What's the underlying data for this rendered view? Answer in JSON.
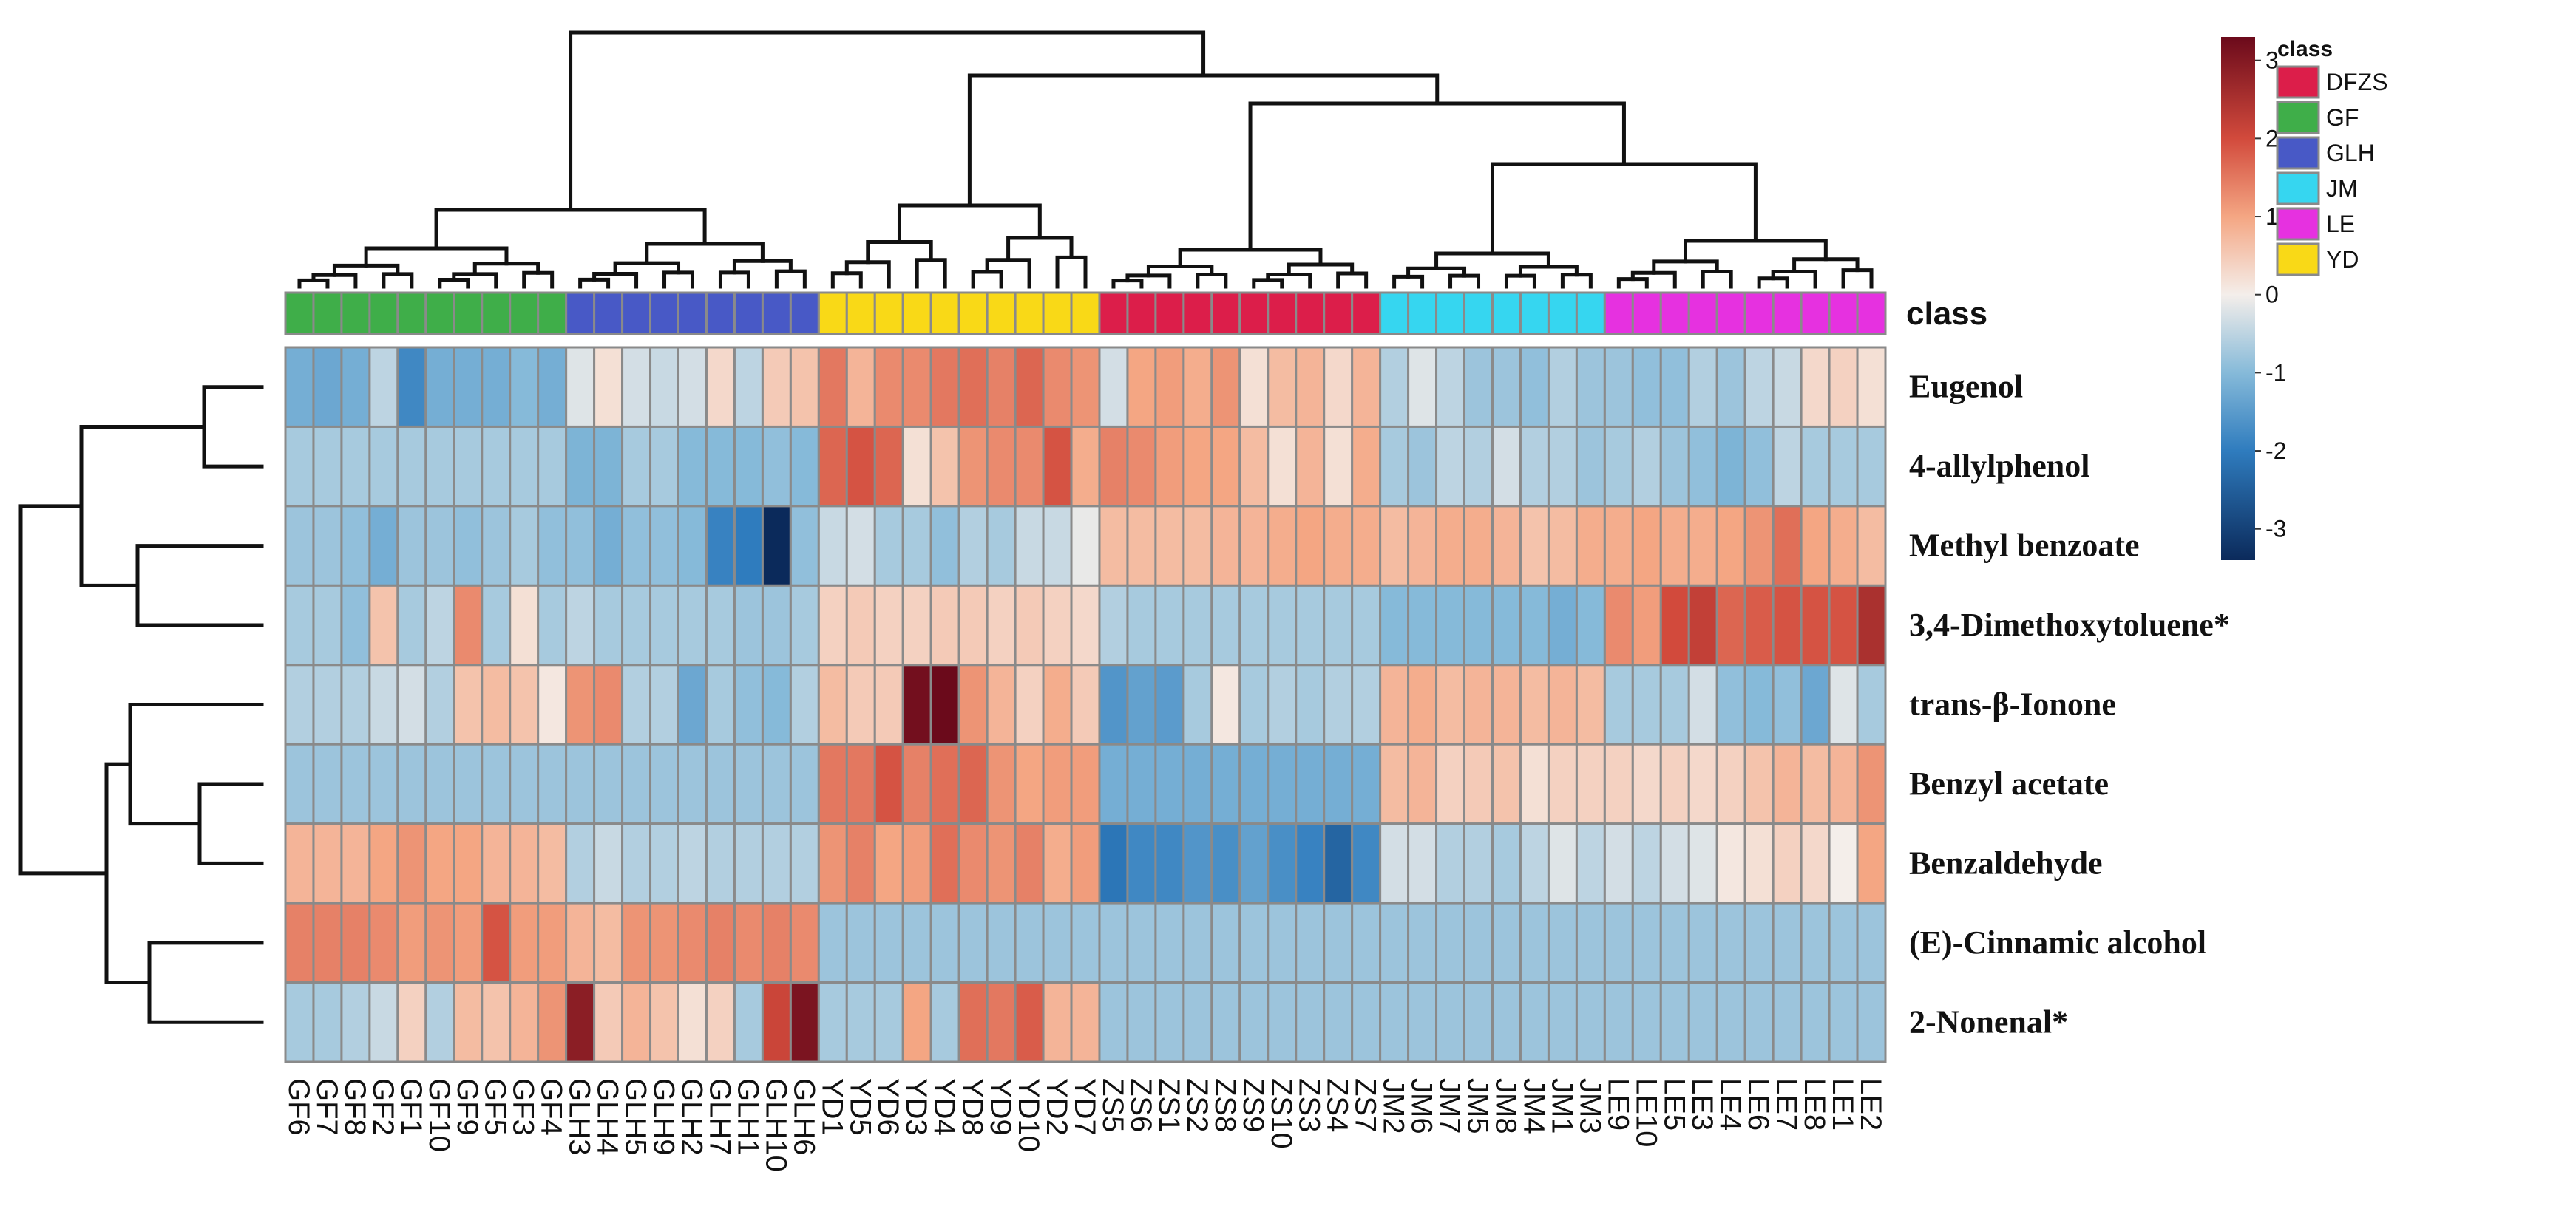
{
  "chart_data": {
    "type": "heatmap",
    "annotation_title": "class",
    "rows": [
      "Eugenol",
      "4-allylphenol",
      "Methyl benzoate",
      "3,4-Dimethoxytoluene*",
      "trans-β-Ionone",
      "Benzyl acetate",
      "Benzaldehyde",
      "(E)-Cinnamic alcohol",
      "2-Nonenal*"
    ],
    "columns": [
      "GF6",
      "GF7",
      "GF8",
      "GF2",
      "GF1",
      "GF10",
      "GF9",
      "GF5",
      "GF3",
      "GF4",
      "GLH3",
      "GLH4",
      "GLH5",
      "GLH9",
      "GLH2",
      "GLH7",
      "GLH1",
      "GLH10",
      "GLH6",
      "YD1",
      "YD5",
      "YD6",
      "YD3",
      "YD4",
      "YD8",
      "YD9",
      "YD10",
      "YD2",
      "YD7",
      "ZS5",
      "ZS6",
      "ZS1",
      "ZS2",
      "ZS8",
      "ZS9",
      "ZS10",
      "ZS3",
      "ZS4",
      "ZS7",
      "JM2",
      "JM6",
      "JM7",
      "JM5",
      "JM8",
      "JM4",
      "JM1",
      "JM3",
      "LE9",
      "LE10",
      "LE5",
      "LE3",
      "LE4",
      "LE6",
      "LE7",
      "LE8",
      "LE1",
      "LE2"
    ],
    "column_class": [
      "GF",
      "GF",
      "GF",
      "GF",
      "GF",
      "GF",
      "GF",
      "GF",
      "GF",
      "GF",
      "GLH",
      "GLH",
      "GLH",
      "GLH",
      "GLH",
      "GLH",
      "GLH",
      "GLH",
      "GLH",
      "YD",
      "YD",
      "YD",
      "YD",
      "YD",
      "YD",
      "YD",
      "YD",
      "YD",
      "YD",
      "DFZS",
      "DFZS",
      "DFZS",
      "DFZS",
      "DFZS",
      "DFZS",
      "DFZS",
      "DFZS",
      "DFZS",
      "DFZS",
      "JM",
      "JM",
      "JM",
      "JM",
      "JM",
      "JM",
      "JM",
      "JM",
      "LE",
      "LE",
      "LE",
      "LE",
      "LE",
      "LE",
      "LE",
      "LE",
      "LE",
      "LE"
    ],
    "values": [
      [
        -1.2,
        -1.3,
        -1.2,
        -0.5,
        -1.8,
        -1.2,
        -1.2,
        -1.2,
        -1.0,
        -1.2,
        -0.2,
        0.2,
        -0.3,
        -0.4,
        -0.3,
        0.3,
        -0.5,
        0.5,
        0.6,
        1.5,
        0.8,
        1.3,
        1.3,
        1.5,
        1.6,
        1.4,
        1.7,
        1.3,
        1.2,
        -0.3,
        1.0,
        1.1,
        0.9,
        1.2,
        0.2,
        0.7,
        0.8,
        0.3,
        0.8,
        -0.6,
        -0.2,
        -0.5,
        -0.8,
        -0.8,
        -0.9,
        -0.6,
        -0.8,
        -0.8,
        -0.9,
        -0.9,
        -0.6,
        -0.8,
        -0.5,
        -0.4,
        0.3,
        0.4,
        0.2
      ],
      [
        -0.7,
        -0.7,
        -0.7,
        -0.7,
        -0.7,
        -0.7,
        -0.7,
        -0.7,
        -0.7,
        -0.7,
        -1.1,
        -1.1,
        -0.7,
        -0.7,
        -1.0,
        -1.0,
        -1.0,
        -0.9,
        -1.0,
        1.7,
        1.9,
        1.7,
        0.2,
        0.6,
        1.2,
        1.3,
        1.3,
        1.9,
        0.9,
        1.4,
        1.3,
        1.1,
        1.0,
        1.0,
        0.7,
        0.2,
        0.8,
        0.2,
        0.9,
        -0.7,
        -0.8,
        -0.5,
        -0.6,
        -0.3,
        -0.6,
        -0.6,
        -0.8,
        -0.7,
        -0.6,
        -0.8,
        -0.9,
        -1.1,
        -0.9,
        -0.5,
        -0.7,
        -0.7,
        -0.7
      ],
      [
        -0.8,
        -0.8,
        -0.9,
        -1.2,
        -0.8,
        -0.8,
        -0.9,
        -0.8,
        -0.7,
        -0.9,
        -0.9,
        -1.2,
        -0.9,
        -0.9,
        -1.0,
        -1.9,
        -2.0,
        -3.4,
        -0.9,
        -0.4,
        -0.3,
        -0.7,
        -0.7,
        -0.9,
        -0.6,
        -0.7,
        -0.4,
        -0.4,
        -0.1,
        0.7,
        0.7,
        0.7,
        0.7,
        0.8,
        0.8,
        0.9,
        1.0,
        0.9,
        0.9,
        0.7,
        0.8,
        0.9,
        0.9,
        0.8,
        0.6,
        0.7,
        0.9,
        0.9,
        1.0,
        0.9,
        0.9,
        1.0,
        1.2,
        1.6,
        1.0,
        0.9,
        0.7
      ],
      [
        -0.7,
        -0.7,
        -0.9,
        0.6,
        -0.7,
        -0.5,
        1.3,
        -0.7,
        0.2,
        -0.7,
        -0.5,
        -0.7,
        -0.7,
        -0.7,
        -0.7,
        -0.7,
        -0.8,
        -0.8,
        -0.7,
        0.4,
        0.5,
        0.4,
        0.4,
        0.5,
        0.5,
        0.4,
        0.5,
        0.4,
        0.3,
        -0.6,
        -0.7,
        -0.7,
        -0.7,
        -0.7,
        -0.7,
        -0.7,
        -0.7,
        -0.7,
        -0.7,
        -1.0,
        -1.0,
        -1.0,
        -1.0,
        -1.0,
        -1.0,
        -1.2,
        -1.0,
        1.3,
        1.1,
        2.0,
        2.2,
        1.7,
        1.8,
        1.9,
        1.9,
        1.9,
        2.5
      ],
      [
        -0.6,
        -0.6,
        -0.6,
        -0.4,
        -0.3,
        -0.6,
        0.6,
        0.7,
        0.6,
        0.1,
        1.2,
        1.3,
        -0.6,
        -0.6,
        -1.3,
        -0.7,
        -0.9,
        -1.0,
        -0.6,
        0.7,
        0.5,
        0.5,
        3.2,
        3.3,
        1.2,
        0.8,
        0.4,
        0.9,
        0.5,
        -1.6,
        -1.4,
        -1.5,
        -0.7,
        0.1,
        -0.7,
        -0.6,
        -0.7,
        -0.6,
        -0.6,
        0.8,
        0.9,
        0.7,
        0.8,
        0.8,
        0.7,
        0.8,
        0.7,
        -0.7,
        -0.7,
        -0.7,
        -0.3,
        -0.9,
        -1.0,
        -0.9,
        -1.3,
        -0.2,
        -0.7
      ],
      [
        -0.8,
        -0.8,
        -0.8,
        -0.8,
        -0.8,
        -0.8,
        -0.8,
        -0.8,
        -0.8,
        -0.8,
        -0.8,
        -0.8,
        -0.8,
        -0.8,
        -0.8,
        -0.8,
        -0.8,
        -0.8,
        -0.8,
        1.5,
        1.5,
        1.9,
        1.4,
        1.6,
        1.7,
        1.2,
        1.0,
        1.1,
        1.1,
        -1.2,
        -1.2,
        -1.2,
        -1.2,
        -1.2,
        -1.2,
        -1.2,
        -1.2,
        -1.2,
        -1.2,
        0.7,
        0.8,
        0.4,
        0.5,
        0.6,
        0.2,
        0.4,
        0.4,
        0.4,
        0.3,
        0.4,
        0.3,
        0.4,
        0.6,
        0.8,
        0.7,
        0.8,
        1.2
      ],
      [
        0.8,
        0.8,
        0.8,
        1.0,
        1.2,
        1.0,
        1.0,
        0.8,
        0.8,
        0.7,
        -0.6,
        -0.4,
        -0.6,
        -0.6,
        -0.5,
        -0.6,
        -0.6,
        -0.6,
        -0.6,
        1.2,
        1.4,
        1.0,
        1.1,
        1.6,
        1.3,
        1.2,
        1.4,
        0.9,
        1.1,
        -2.1,
        -1.8,
        -1.8,
        -1.6,
        -1.7,
        -1.4,
        -1.7,
        -1.9,
        -2.4,
        -1.8,
        -0.3,
        -0.3,
        -0.6,
        -0.6,
        -0.7,
        -0.5,
        -0.2,
        -0.5,
        -0.3,
        -0.5,
        -0.3,
        -0.2,
        0.1,
        0.2,
        0.4,
        0.3,
        0.0,
        1.0
      ],
      [
        1.4,
        1.4,
        1.4,
        1.3,
        1.1,
        1.2,
        1.1,
        1.9,
        1.1,
        1.1,
        0.8,
        0.7,
        1.2,
        1.2,
        1.3,
        1.4,
        1.3,
        1.4,
        1.3,
        -0.8,
        -0.8,
        -0.8,
        -0.8,
        -0.8,
        -0.8,
        -0.8,
        -0.8,
        -0.8,
        -0.8,
        -0.8,
        -0.8,
        -0.8,
        -0.8,
        -0.8,
        -0.8,
        -0.8,
        -0.8,
        -0.8,
        -0.8,
        -0.8,
        -0.8,
        -0.8,
        -0.8,
        -0.8,
        -0.8,
        -0.8,
        -0.8,
        -0.8,
        -0.8,
        -0.8,
        -0.8,
        -0.8,
        -0.8,
        -0.8,
        -0.8,
        -0.8,
        -0.8
      ],
      [
        -0.7,
        -0.7,
        -0.6,
        -0.4,
        0.4,
        -0.6,
        0.7,
        0.6,
        0.8,
        1.2,
        2.9,
        0.5,
        0.8,
        0.6,
        0.2,
        0.4,
        -0.7,
        2.1,
        3.1,
        -0.7,
        -0.7,
        -0.7,
        1.0,
        -0.7,
        1.6,
        1.5,
        1.8,
        0.8,
        0.8,
        -0.8,
        -0.8,
        -0.8,
        -0.8,
        -0.8,
        -0.8,
        -0.8,
        -0.8,
        -0.8,
        -0.8,
        -0.8,
        -0.8,
        -0.8,
        -0.8,
        -0.8,
        -0.8,
        -0.8,
        -0.8,
        -0.8,
        -0.8,
        -0.8,
        -0.8,
        -0.8,
        -0.8,
        -0.8,
        -0.8,
        -0.8,
        -0.8
      ]
    ],
    "color_scale": {
      "min": -3.4,
      "max": 3.3,
      "stops": [
        [
          -3.4,
          "#0b2a5b"
        ],
        [
          -2,
          "#2f7cbe"
        ],
        [
          -1,
          "#86bad9"
        ],
        [
          0,
          "#f4eeea"
        ],
        [
          1,
          "#f4a683"
        ],
        [
          2,
          "#d24a3c"
        ],
        [
          3.3,
          "#6b0a1b"
        ]
      ]
    },
    "colorbar_ticks": [
      3,
      2,
      1,
      0,
      -1,
      -2,
      -3
    ],
    "legend": [
      {
        "label": "DFZS",
        "color": "#dc1e4a"
      },
      {
        "label": "GF",
        "color": "#3fae49"
      },
      {
        "label": "GLH",
        "color": "#4859c6"
      },
      {
        "label": "JM",
        "color": "#36d6f0"
      },
      {
        "label": "LE",
        "color": "#e631e0"
      },
      {
        "label": "YD",
        "color": "#f9d917"
      }
    ]
  }
}
